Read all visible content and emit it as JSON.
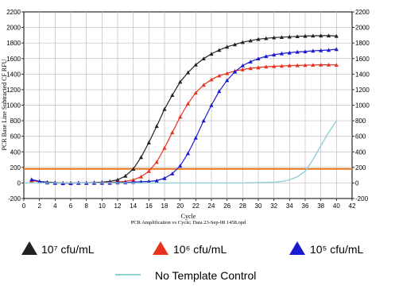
{
  "chart_data": {
    "type": "line",
    "xlabel": "Cycle",
    "ylabel": "PCR Base Line Subtracted CF RFU",
    "caption": "PCR Amplification vs Cycle; Data 23-Sep-08 1458.opd",
    "xlim": [
      0,
      42
    ],
    "ylim": [
      -200,
      2200
    ],
    "x_ticks": [
      0,
      2,
      4,
      6,
      8,
      10,
      12,
      14,
      16,
      18,
      20,
      22,
      24,
      26,
      28,
      30,
      32,
      34,
      36,
      38,
      40,
      42
    ],
    "y_ticks": [
      -200,
      0,
      200,
      400,
      600,
      800,
      1000,
      1200,
      1400,
      1600,
      1800,
      2000,
      2200
    ],
    "grid": true,
    "threshold": {
      "value": 180,
      "color": "#e8751a"
    },
    "legend_position": "bottom",
    "series": [
      {
        "name": "10⁷ cfu/mL",
        "color": "#222222",
        "marker": "triangle",
        "x": [
          1,
          2,
          3,
          4,
          5,
          6,
          7,
          8,
          9,
          10,
          11,
          12,
          13,
          14,
          15,
          16,
          17,
          18,
          19,
          20,
          21,
          22,
          23,
          24,
          25,
          26,
          27,
          28,
          29,
          30,
          31,
          32,
          33,
          34,
          35,
          36,
          37,
          38,
          39,
          40
        ],
        "values": [
          40,
          20,
          10,
          5,
          0,
          0,
          0,
          0,
          5,
          10,
          20,
          40,
          90,
          180,
          330,
          520,
          730,
          950,
          1130,
          1300,
          1420,
          1520,
          1600,
          1660,
          1710,
          1750,
          1780,
          1810,
          1830,
          1850,
          1860,
          1870,
          1875,
          1880,
          1885,
          1890,
          1893,
          1895,
          1895,
          1890
        ]
      },
      {
        "name": "10⁶ cfu/mL",
        "color": "#e8321e",
        "marker": "triangle",
        "x": [
          1,
          2,
          3,
          4,
          5,
          6,
          7,
          8,
          9,
          10,
          11,
          12,
          13,
          14,
          15,
          16,
          17,
          18,
          19,
          20,
          21,
          22,
          23,
          24,
          25,
          26,
          27,
          28,
          29,
          30,
          31,
          32,
          33,
          34,
          35,
          36,
          37,
          38,
          39,
          40
        ],
        "values": [
          30,
          15,
          5,
          0,
          0,
          0,
          0,
          0,
          0,
          5,
          5,
          10,
          20,
          40,
          80,
          150,
          270,
          450,
          650,
          850,
          1020,
          1160,
          1260,
          1330,
          1380,
          1410,
          1440,
          1460,
          1475,
          1485,
          1495,
          1500,
          1505,
          1510,
          1512,
          1515,
          1518,
          1520,
          1520,
          1518
        ]
      },
      {
        "name": "10⁵ cfu/mL",
        "color": "#1a1ad0",
        "marker": "triangle",
        "x": [
          1,
          2,
          3,
          4,
          5,
          6,
          7,
          8,
          9,
          10,
          11,
          12,
          13,
          14,
          15,
          16,
          17,
          18,
          19,
          20,
          21,
          22,
          23,
          24,
          25,
          26,
          27,
          28,
          29,
          30,
          31,
          32,
          33,
          34,
          35,
          36,
          37,
          38,
          39,
          40
        ],
        "values": [
          45,
          20,
          5,
          0,
          -5,
          -5,
          0,
          0,
          0,
          0,
          0,
          5,
          5,
          10,
          15,
          20,
          30,
          60,
          120,
          220,
          380,
          580,
          800,
          1000,
          1180,
          1320,
          1430,
          1510,
          1560,
          1600,
          1630,
          1650,
          1665,
          1675,
          1685,
          1690,
          1700,
          1705,
          1710,
          1720
        ]
      },
      {
        "name": "No Template Control",
        "color": "#8ed0d8",
        "marker": "none",
        "x": [
          0,
          4,
          8,
          12,
          16,
          20,
          24,
          28,
          30,
          32,
          33,
          34,
          35,
          36,
          37,
          38,
          39,
          40
        ],
        "values": [
          0,
          0,
          0,
          0,
          0,
          0,
          0,
          0,
          5,
          10,
          20,
          40,
          80,
          150,
          300,
          480,
          650,
          800
        ]
      }
    ]
  }
}
